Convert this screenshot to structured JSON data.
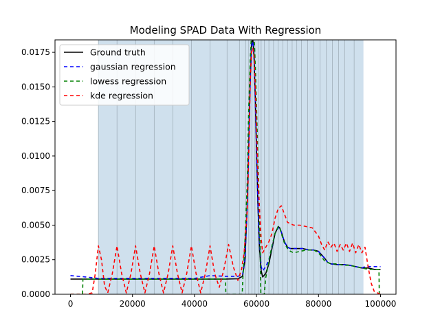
{
  "chart_data": {
    "type": "line",
    "title": "Modeling SPAD Data With Regression",
    "xlabel": "",
    "ylabel": "",
    "xlim": [
      -5000,
      105000
    ],
    "ylim": [
      0,
      0.0184
    ],
    "x_ticks": [
      0,
      20000,
      40000,
      60000,
      80000,
      100000
    ],
    "x_tick_labels": [
      "0",
      "20000",
      "40000",
      "60000",
      "80000",
      "100000"
    ],
    "y_ticks": [
      0,
      0.0025,
      0.005,
      0.0075,
      0.01,
      0.0125,
      0.015,
      0.0175
    ],
    "y_tick_labels": [
      "0.0000",
      "0.0025",
      "0.0050",
      "0.0075",
      "0.0100",
      "0.0125",
      "0.0150",
      "0.0175"
    ],
    "shaded_region": {
      "x_start": 9000,
      "x_end": 94500,
      "color": "#cfe0ed"
    },
    "bin_edges": [
      9000,
      15000,
      21000,
      27000,
      33000,
      39000,
      45000,
      50500,
      54500,
      56500,
      57500,
      58500,
      59500,
      60500,
      61500,
      62500,
      64000,
      65500,
      67000,
      68500,
      70000,
      71500,
      73000,
      74500,
      76500,
      78500,
      80500,
      82500,
      84500,
      86500,
      88500,
      91500
    ],
    "legend_position": "top-left",
    "series": [
      {
        "name": "Ground truth",
        "color": "#000000",
        "dash": "solid",
        "x": [
          0,
          10000,
          20000,
          30000,
          40000,
          50000,
          54000,
          55500,
          56300,
          57000,
          57600,
          58000,
          58400,
          58800,
          59200,
          59600,
          60000,
          60500,
          61000,
          61500,
          62000,
          63000,
          64000,
          65000,
          66000,
          67000,
          67500,
          68000,
          69000,
          70000,
          71000,
          73000,
          75000,
          77000,
          78500,
          80000,
          82000,
          83000,
          84000,
          86000,
          88000,
          90000,
          92000,
          94000,
          96000,
          98000,
          100000
        ],
        "values": [
          0.0011,
          0.0011,
          0.0011,
          0.0011,
          0.0011,
          0.0011,
          0.00112,
          0.0013,
          0.0025,
          0.0065,
          0.012,
          0.0158,
          0.0182,
          0.0185,
          0.0172,
          0.0142,
          0.0105,
          0.0062,
          0.0032,
          0.0017,
          0.00125,
          0.0015,
          0.0022,
          0.0033,
          0.0044,
          0.0049,
          0.0048,
          0.0045,
          0.0038,
          0.0034,
          0.0033,
          0.0033,
          0.0033,
          0.0032,
          0.0032,
          0.0031,
          0.0026,
          0.0023,
          0.0022,
          0.00215,
          0.00215,
          0.0021,
          0.002,
          0.0019,
          0.0019,
          0.0018,
          0.0018
        ]
      },
      {
        "name": "gaussian regression",
        "color": "#0000ff",
        "dash": "5,4",
        "x": [
          0,
          5000,
          9000,
          10000,
          20000,
          30000,
          40000,
          45000,
          50000,
          54000,
          55500,
          56300,
          57000,
          57600,
          58000,
          58400,
          58800,
          59200,
          59600,
          60000,
          60500,
          61000,
          61500,
          62000,
          63000,
          64000,
          65000,
          66000,
          67000,
          67500,
          68000,
          69000,
          70000,
          71000,
          73000,
          75000,
          77000,
          78500,
          80000,
          82000,
          83000,
          84000,
          86000,
          88000,
          90000,
          92000,
          94000,
          95000,
          100000
        ],
        "values": [
          0.00135,
          0.00125,
          0.00115,
          0.00115,
          0.00115,
          0.00115,
          0.00115,
          0.00135,
          0.0013,
          0.0013,
          0.0014,
          0.0026,
          0.0064,
          0.0118,
          0.0156,
          0.018,
          0.0183,
          0.0171,
          0.0141,
          0.0104,
          0.0063,
          0.0035,
          0.002,
          0.0017,
          0.002,
          0.0025,
          0.0034,
          0.0044,
          0.0048,
          0.0048,
          0.0045,
          0.0038,
          0.0034,
          0.0033,
          0.0033,
          0.0033,
          0.0032,
          0.0032,
          0.0031,
          0.0026,
          0.0023,
          0.0022,
          0.00215,
          0.00215,
          0.0021,
          0.002,
          0.0019,
          0.002,
          0.002
        ]
      },
      {
        "name": "lowess regression",
        "color": "#008000",
        "dash": "5,4",
        "x": [
          0,
          3900,
          4000,
          4100,
          9000,
          10000,
          20000,
          30000,
          40000,
          45000,
          49900,
          50000,
          50100,
          55000,
          55400,
          55600,
          56200,
          57000,
          57500,
          58000,
          58400,
          58900,
          59300,
          59700,
          60200,
          60700,
          61100,
          61400,
          61700,
          62100,
          62500,
          63000,
          64000,
          65000,
          66000,
          67000,
          67500,
          68000,
          69000,
          70000,
          71000,
          72000,
          74000,
          76000,
          77000,
          78500,
          80000,
          82000,
          84000,
          86000,
          88000,
          90000,
          92000,
          94000,
          96000,
          98000,
          99500,
          99600
        ],
        "values": [
          0,
          0,
          0.0011,
          0.0011,
          0.0011,
          0.0011,
          0.0011,
          0.0011,
          0.0011,
          0.0011,
          0.0011,
          0.0011,
          0,
          0,
          0,
          0.0012,
          0.0035,
          0.008,
          0.0135,
          0.017,
          0.019,
          0.019,
          0.0185,
          0.016,
          0.012,
          0.008,
          0.004,
          0,
          0,
          0,
          0,
          0.0012,
          0.0024,
          0.0035,
          0.0044,
          0.0049,
          0.0048,
          0.0044,
          0.0037,
          0.0033,
          0.0031,
          0.003,
          0.0031,
          0.0032,
          0.0032,
          0.0032,
          0.003,
          0.0024,
          0.0022,
          0.0022,
          0.0021,
          0.0021,
          0.002,
          0.0019,
          0.0018,
          0.0018,
          0.0018,
          0
        ]
      },
      {
        "name": "kde regression",
        "color": "#ff0000",
        "dash": "5,4",
        "x": [
          0,
          5000,
          7000,
          8000,
          9000,
          10000,
          11000,
          12000,
          13500,
          15000,
          16500,
          18000,
          19500,
          21000,
          22500,
          24000,
          25500,
          27000,
          28500,
          30000,
          31500,
          33000,
          34500,
          36000,
          37500,
          39000,
          40500,
          42000,
          43500,
          45000,
          46500,
          48000,
          49500,
          51000,
          52500,
          54000,
          55200,
          56000,
          57000,
          57600,
          58000,
          58400,
          58800,
          59200,
          59600,
          60000,
          60500,
          61000,
          61500,
          62000,
          62500,
          63000,
          64000,
          65000,
          66000,
          67000,
          68000,
          69000,
          70000,
          72000,
          74000,
          76000,
          78000,
          80000,
          81000,
          82000,
          83000,
          84000,
          85000,
          86000,
          87000,
          88000,
          89000,
          90000,
          91000,
          92000,
          93000,
          94000,
          95000,
          96000,
          97000,
          98000,
          99000,
          100000
        ],
        "values": [
          0,
          0,
          0.0001,
          0.0015,
          0.0035,
          0.0025,
          0.0006,
          0.0001,
          0.0015,
          0.0035,
          0.0015,
          0.0001,
          0.0015,
          0.0035,
          0.0015,
          0.0001,
          0.0015,
          0.0035,
          0.0015,
          0.0001,
          0.0015,
          0.0035,
          0.0015,
          0.0001,
          0.0015,
          0.0035,
          0.0015,
          0.0001,
          0.0015,
          0.0035,
          0.0015,
          0.0005,
          0.0018,
          0.0036,
          0.002,
          0.001,
          0.0018,
          0.003,
          0.006,
          0.011,
          0.0155,
          0.0176,
          0.0178,
          0.0172,
          0.015,
          0.012,
          0.0085,
          0.006,
          0.004,
          0.003,
          0.0032,
          0.0034,
          0.0038,
          0.0044,
          0.0055,
          0.0062,
          0.0064,
          0.0058,
          0.0052,
          0.005,
          0.005,
          0.0049,
          0.0048,
          0.0042,
          0.0036,
          0.0032,
          0.0038,
          0.0034,
          0.0037,
          0.0031,
          0.0036,
          0.0032,
          0.0037,
          0.0031,
          0.0037,
          0.003,
          0.0036,
          0.003,
          0.0034,
          0.002,
          0.0008,
          0.0002,
          0.0001,
          0
        ]
      }
    ]
  }
}
